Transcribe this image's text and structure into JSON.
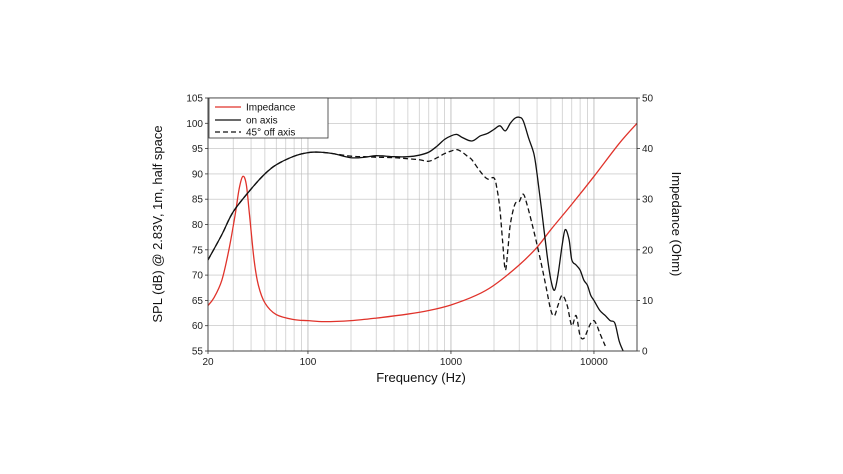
{
  "chart_data": {
    "type": "line",
    "xlabel": "Frequency (Hz)",
    "ylabel": "SPL (dB) @ 2.83V, 1m, half space",
    "y2label": "Impedance (Ohm)",
    "xscale": "log",
    "xlim": [
      20,
      20000
    ],
    "ylim": [
      55,
      105
    ],
    "y2lim": [
      0,
      50
    ],
    "xticks": [
      20,
      100,
      1000,
      10000
    ],
    "yticks": [
      55,
      60,
      65,
      70,
      75,
      80,
      85,
      90,
      95,
      100,
      105
    ],
    "y2ticks": [
      0,
      10,
      20,
      30,
      40,
      50
    ],
    "grid": true,
    "legend_position": "top-left",
    "series": [
      {
        "name": "Impedance",
        "axis": "right",
        "color": "#e0332b",
        "style": "solid",
        "x": [
          20,
          22,
          25,
          28,
          31,
          33,
          35,
          37,
          39,
          42,
          45,
          50,
          60,
          80,
          100,
          130,
          200,
          300,
          500,
          700,
          1000,
          1500,
          2000,
          3000,
          4000,
          5000,
          7000,
          10000,
          15000,
          20000
        ],
        "y": [
          9,
          10.5,
          14,
          20,
          27,
          32,
          34.5,
          33,
          27,
          18,
          13,
          9.5,
          7.2,
          6.2,
          6.0,
          5.8,
          6.0,
          6.5,
          7.3,
          8.0,
          9.1,
          11.0,
          13.0,
          17.0,
          20.5,
          24.0,
          29.0,
          34.5,
          41.0,
          45.0
        ]
      },
      {
        "name": "on axis",
        "axis": "left",
        "color": "#111111",
        "style": "solid",
        "x": [
          20,
          25,
          30,
          40,
          50,
          60,
          80,
          100,
          120,
          150,
          200,
          250,
          300,
          400,
          500,
          600,
          700,
          800,
          900,
          1000,
          1100,
          1200,
          1400,
          1600,
          1800,
          2000,
          2200,
          2400,
          2600,
          2800,
          3000,
          3200,
          3500,
          3800,
          4000,
          4300,
          4700,
          5000,
          5300,
          5600,
          6000,
          6300,
          6700,
          7000,
          7500,
          8000,
          8500,
          9000,
          9500,
          10000,
          11000,
          12000,
          13000,
          14000,
          15000,
          16000
        ],
        "y": [
          73,
          78,
          82.5,
          87,
          90,
          91.8,
          93.5,
          94.2,
          94.3,
          94,
          93.2,
          93.3,
          93.6,
          93.4,
          93.4,
          93.7,
          94.3,
          95.5,
          96.8,
          97.5,
          97.8,
          97.2,
          96.5,
          97.5,
          98,
          98.8,
          99.5,
          98.5,
          100,
          101,
          101.2,
          100.5,
          97,
          94,
          90,
          83,
          74,
          69,
          67,
          70,
          76,
          79,
          77,
          73,
          72,
          71,
          69,
          68,
          66,
          65,
          63,
          62,
          61,
          60.5,
          57,
          55
        ]
      },
      {
        "name": "45° off axis",
        "axis": "left",
        "color": "#111111",
        "style": "dashed",
        "x": [
          20,
          25,
          30,
          40,
          50,
          60,
          80,
          100,
          120,
          150,
          200,
          250,
          300,
          400,
          500,
          600,
          700,
          800,
          900,
          1000,
          1100,
          1200,
          1300,
          1400,
          1600,
          1800,
          2000,
          2100,
          2200,
          2300,
          2400,
          2500,
          2600,
          2800,
          3000,
          3200,
          3400,
          3700,
          4000,
          4300,
          4600,
          5000,
          5300,
          5600,
          6000,
          6500,
          7000,
          7500,
          8000,
          8500,
          9000,
          9500,
          10000,
          10500,
          11000,
          12000
        ],
        "y": [
          73,
          78,
          82.5,
          87,
          90,
          91.8,
          93.5,
          94.2,
          94.3,
          94,
          93.5,
          93.4,
          93.3,
          93.2,
          93,
          92.8,
          92.5,
          93.2,
          94,
          94.5,
          94.8,
          94.3,
          93.5,
          92.8,
          90.5,
          89,
          89.2,
          87,
          83,
          76.5,
          71,
          75,
          80,
          84,
          84.5,
          86,
          84,
          80,
          76,
          72,
          68,
          63,
          62,
          64,
          66,
          64,
          60,
          62,
          58,
          57.5,
          59,
          60.5,
          61,
          60,
          58.5,
          56
        ]
      }
    ]
  }
}
